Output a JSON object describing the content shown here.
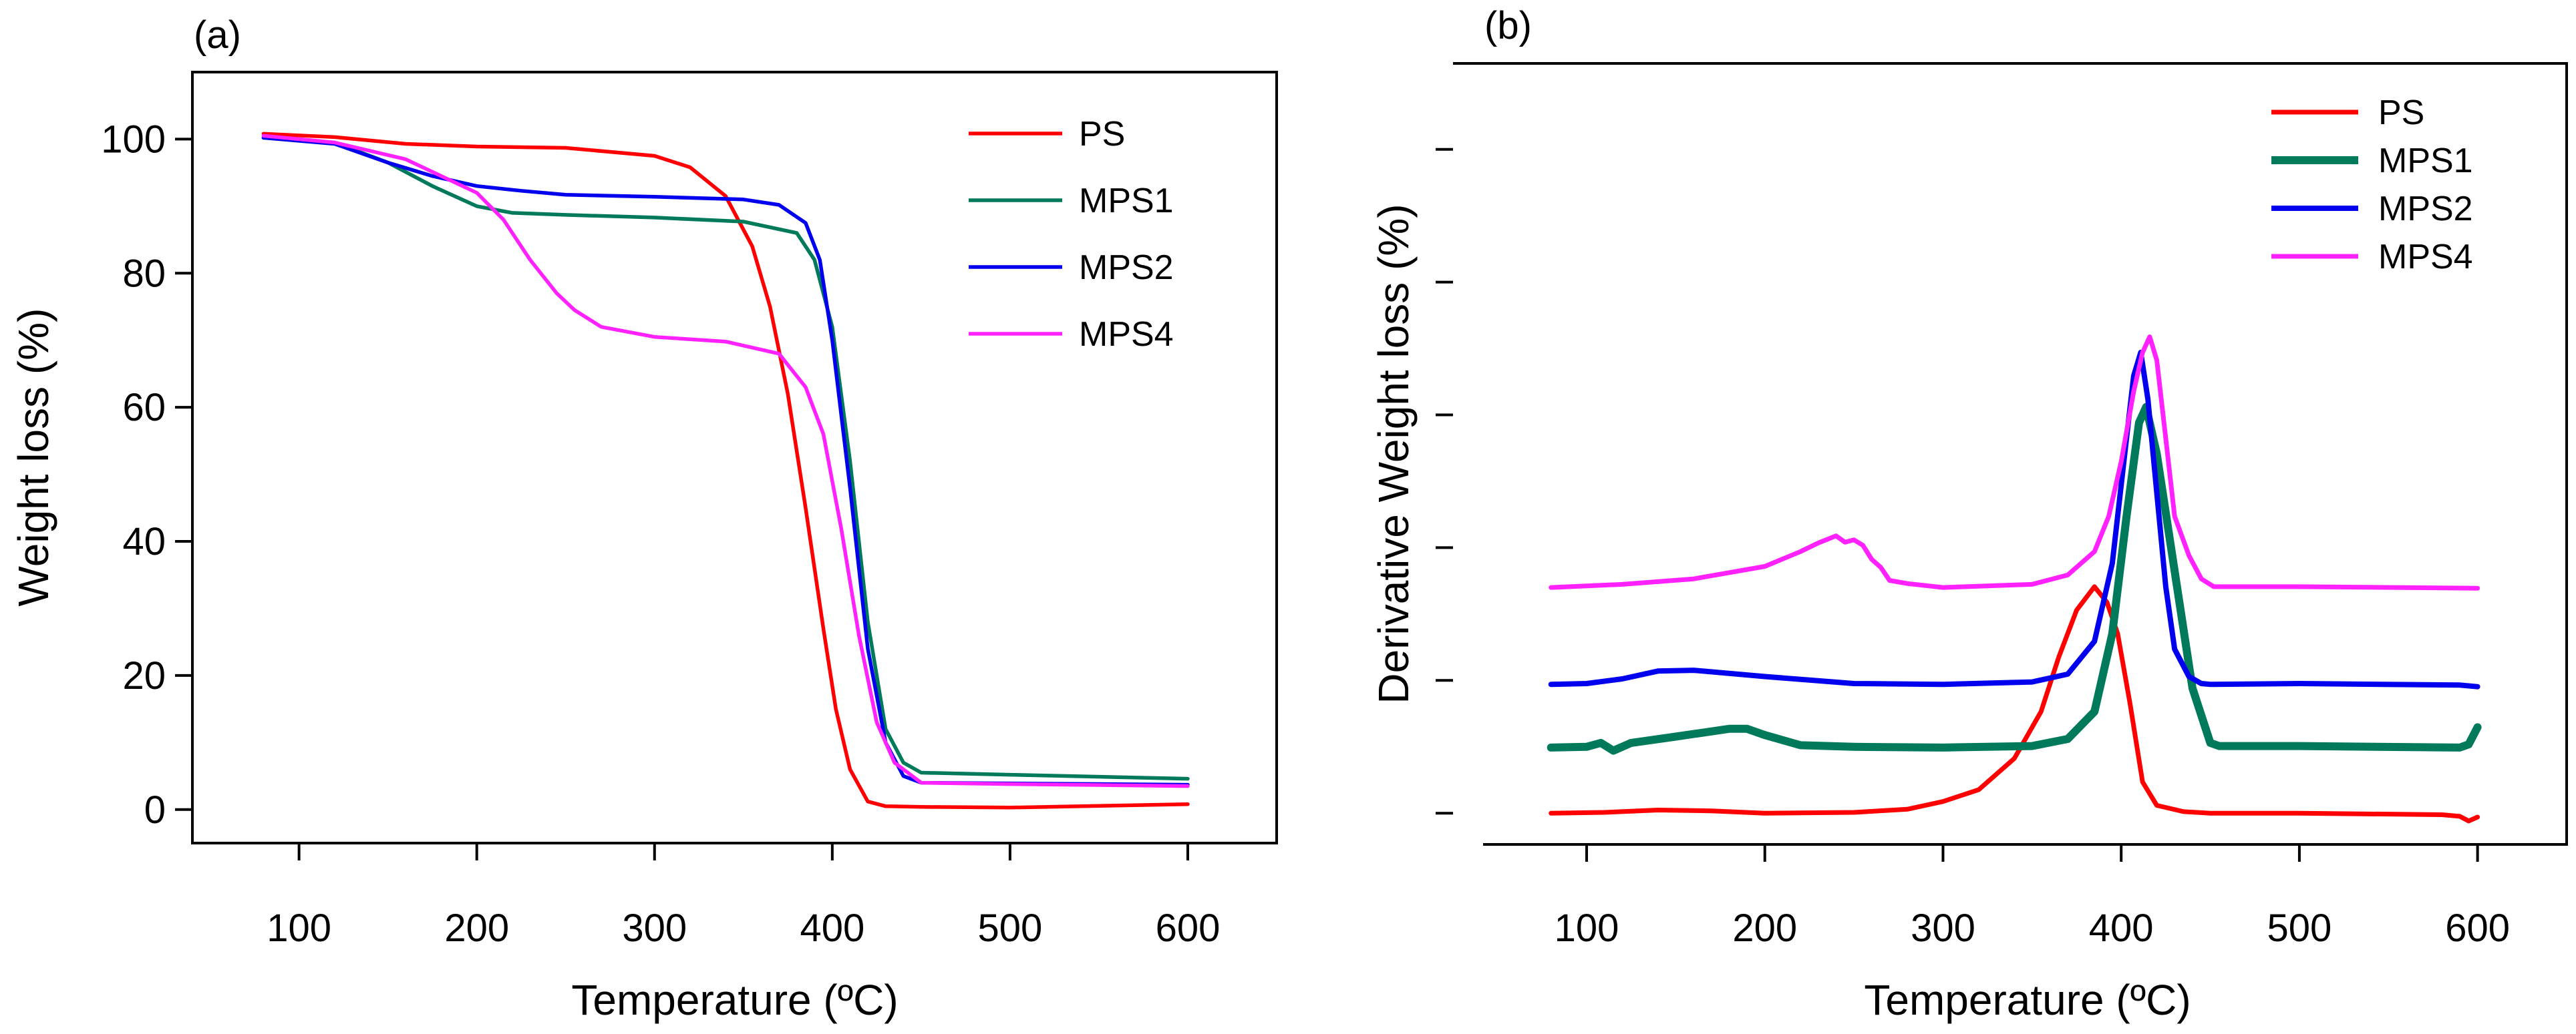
{
  "colors": {
    "PS": "#ff0000",
    "MPS1": "#007a5a",
    "MPS2": "#0000ee",
    "MPS4": "#ff22ff"
  },
  "chart_data": [
    {
      "type": "line",
      "panel_label": "(a)",
      "title": "",
      "xlabel": "Temperature (ºC)",
      "ylabel": "Weight loss (%)",
      "xlim": [
        40,
        650
      ],
      "ylim": [
        -5,
        110
      ],
      "xticks": [
        100,
        200,
        300,
        400,
        500,
        600
      ],
      "yticks": [
        0,
        20,
        40,
        60,
        80,
        100
      ],
      "legend_position": "top-right",
      "series": [
        {
          "name": "PS",
          "x": [
            80,
            120,
            160,
            200,
            250,
            300,
            320,
            340,
            355,
            365,
            375,
            385,
            395,
            402,
            410,
            420,
            430,
            450,
            500,
            600
          ],
          "y": [
            100.8,
            100.3,
            99.3,
            98.9,
            98.7,
            97.5,
            95.8,
            91.5,
            84,
            75,
            62,
            45,
            27,
            15,
            6,
            1.2,
            0.5,
            0.4,
            0.3,
            0.8
          ]
        },
        {
          "name": "MPS1",
          "x": [
            80,
            120,
            150,
            175,
            200,
            220,
            250,
            300,
            350,
            380,
            390,
            400,
            410,
            420,
            430,
            440,
            450,
            500,
            600
          ],
          "y": [
            100.2,
            99.5,
            96.5,
            93,
            90,
            89,
            88.7,
            88.3,
            87.7,
            86,
            82,
            72,
            52,
            28,
            12,
            7,
            5.5,
            5.2,
            4.6
          ]
        },
        {
          "name": "MPS2",
          "x": [
            80,
            120,
            150,
            175,
            200,
            225,
            250,
            300,
            350,
            370,
            385,
            393,
            400,
            410,
            420,
            430,
            440,
            450,
            500,
            600
          ],
          "y": [
            100.2,
            99.3,
            96.5,
            94.5,
            93,
            92.3,
            91.7,
            91.4,
            91,
            90.2,
            87.5,
            82,
            70,
            48,
            24,
            10,
            5,
            4,
            3.9,
            3.7
          ]
        },
        {
          "name": "MPS4",
          "x": [
            80,
            120,
            160,
            200,
            215,
            230,
            245,
            255,
            270,
            300,
            340,
            370,
            385,
            395,
            405,
            415,
            425,
            435,
            450,
            500,
            600
          ],
          "y": [
            100.5,
            99.5,
            97,
            92,
            88,
            82,
            77,
            74.5,
            72,
            70.5,
            69.8,
            68,
            63,
            56,
            42,
            26,
            13,
            7,
            4,
            3.8,
            3.5
          ]
        }
      ]
    },
    {
      "type": "line",
      "panel_label": "(b)",
      "title": "",
      "xlabel": "Temperature (ºC)",
      "ylabel": "Derivative Weight loss (%)",
      "xlim": [
        25,
        650
      ],
      "ylim": [
        0,
        100
      ],
      "y_units": "arbitrary (stacked curves, unlabeled y ticks)",
      "xticks": [
        100,
        200,
        300,
        400,
        500,
        600
      ],
      "yticks": [
        4,
        21,
        38,
        55,
        72,
        89
      ],
      "legend_position": "top-right",
      "series": [
        {
          "name": "PS",
          "x": [
            80,
            110,
            140,
            170,
            200,
            250,
            280,
            300,
            320,
            340,
            355,
            365,
            375,
            385,
            392,
            398,
            405,
            412,
            420,
            435,
            450,
            500,
            580,
            590,
            595,
            600
          ],
          "y": [
            4,
            4.1,
            4.4,
            4.3,
            4,
            4.1,
            4.5,
            5.5,
            7,
            11,
            17,
            24,
            30,
            33,
            31,
            27,
            18,
            8,
            5,
            4.2,
            4,
            4,
            3.8,
            3.6,
            3,
            3.5
          ]
        },
        {
          "name": "MPS1",
          "x": [
            80,
            100,
            108,
            115,
            125,
            150,
            180,
            190,
            200,
            220,
            250,
            300,
            350,
            370,
            385,
            395,
            403,
            410,
            414,
            420,
            430,
            440,
            450,
            455,
            500,
            590,
            595,
            600
          ],
          "y": [
            12.4,
            12.5,
            13,
            12,
            13,
            13.8,
            14.8,
            14.8,
            14,
            12.7,
            12.5,
            12.4,
            12.6,
            13.5,
            17,
            27,
            42,
            54,
            56,
            50,
            35,
            20,
            13,
            12.6,
            12.6,
            12.4,
            12.8,
            15
          ]
        },
        {
          "name": "MPS2",
          "x": [
            80,
            100,
            120,
            140,
            160,
            200,
            250,
            300,
            350,
            370,
            385,
            395,
            402,
            407,
            411,
            415,
            420,
            425,
            430,
            438,
            445,
            450,
            500,
            590,
            600
          ],
          "y": [
            20.5,
            20.6,
            21.2,
            22.2,
            22.3,
            21.5,
            20.6,
            20.5,
            20.8,
            21.8,
            26,
            36,
            50,
            60,
            63,
            57,
            45,
            33,
            25,
            21.5,
            20.6,
            20.5,
            20.6,
            20.4,
            20.2
          ]
        },
        {
          "name": "MPS4",
          "x": [
            80,
            120,
            160,
            200,
            220,
            230,
            240,
            245,
            250,
            255,
            260,
            265,
            270,
            280,
            300,
            350,
            370,
            385,
            393,
            400,
            407,
            412,
            416,
            420,
            425,
            430,
            438,
            445,
            452,
            500,
            600
          ],
          "y": [
            32.9,
            33.3,
            34,
            35.6,
            37.5,
            38.6,
            39.5,
            38.7,
            39,
            38.3,
            36.5,
            35.5,
            33.8,
            33.4,
            32.9,
            33.3,
            34.5,
            37.5,
            42,
            49,
            58,
            63,
            65,
            62,
            52,
            42,
            37,
            34,
            33,
            33,
            32.8
          ]
        }
      ]
    }
  ]
}
